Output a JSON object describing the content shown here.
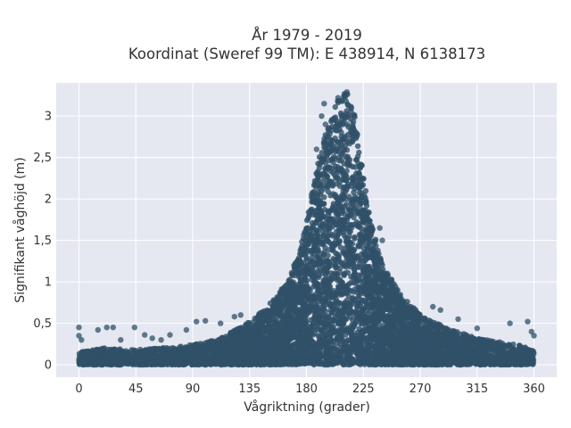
{
  "chart_data": {
    "type": "scatter",
    "title_line1": "År 1979 - 2019",
    "title_line2": "Koordinat (Sweref 99 TM): E 438914, N 6138173",
    "xlabel": "Vågriktning (grader)",
    "ylabel": "Signifikant våghöjd (m)",
    "xlim": [
      -18,
      378
    ],
    "ylim": [
      -0.15,
      3.4
    ],
    "x_ticks": [
      0,
      45,
      90,
      135,
      180,
      225,
      270,
      315,
      360
    ],
    "x_tick_labels": [
      "0",
      "45",
      "90",
      "135",
      "180",
      "225",
      "270",
      "315",
      "360"
    ],
    "y_ticks": [
      0,
      0.5,
      1,
      1.5,
      2,
      2.5,
      3
    ],
    "y_tick_labels": [
      "0",
      "0,5",
      "1",
      "1,5",
      "2",
      "2,5",
      "3"
    ],
    "grid": true,
    "colors": {
      "marker": "#2f5068",
      "plot_bg": "#e5e8f1",
      "grid": "#ffffff"
    },
    "envelope": [
      [
        0,
        0.15
      ],
      [
        20,
        0.2
      ],
      [
        45,
        0.18
      ],
      [
        80,
        0.22
      ],
      [
        110,
        0.3
      ],
      [
        135,
        0.52
      ],
      [
        150,
        0.72
      ],
      [
        165,
        1.0
      ],
      [
        175,
        1.4
      ],
      [
        182,
        1.9
      ],
      [
        190,
        2.5
      ],
      [
        198,
        2.95
      ],
      [
        205,
        3.2
      ],
      [
        212,
        3.3
      ],
      [
        218,
        3.05
      ],
      [
        225,
        2.3
      ],
      [
        230,
        1.8
      ],
      [
        240,
        1.2
      ],
      [
        255,
        0.85
      ],
      [
        270,
        0.6
      ],
      [
        290,
        0.45
      ],
      [
        315,
        0.32
      ],
      [
        345,
        0.25
      ],
      [
        360,
        0.18
      ]
    ],
    "outliers": [
      {
        "x": 0,
        "y": 0.45
      },
      {
        "x": 0,
        "y": 0.35
      },
      {
        "x": 2,
        "y": 0.3
      },
      {
        "x": 15,
        "y": 0.42
      },
      {
        "x": 22,
        "y": 0.45
      },
      {
        "x": 27,
        "y": 0.45
      },
      {
        "x": 33,
        "y": 0.3
      },
      {
        "x": 44,
        "y": 0.45
      },
      {
        "x": 52,
        "y": 0.36
      },
      {
        "x": 58,
        "y": 0.32
      },
      {
        "x": 65,
        "y": 0.3
      },
      {
        "x": 72,
        "y": 0.36
      },
      {
        "x": 85,
        "y": 0.42
      },
      {
        "x": 93,
        "y": 0.52
      },
      {
        "x": 100,
        "y": 0.53
      },
      {
        "x": 112,
        "y": 0.5
      },
      {
        "x": 123,
        "y": 0.58
      },
      {
        "x": 128,
        "y": 0.6
      },
      {
        "x": 205,
        "y": 3.22
      },
      {
        "x": 210,
        "y": 3.27
      },
      {
        "x": 212,
        "y": 3.29
      },
      {
        "x": 195,
        "y": 2.9
      },
      {
        "x": 194,
        "y": 3.15
      },
      {
        "x": 192,
        "y": 3.0
      },
      {
        "x": 188,
        "y": 2.6
      },
      {
        "x": 184,
        "y": 2.05
      },
      {
        "x": 240,
        "y": 1.5
      },
      {
        "x": 238,
        "y": 1.65
      },
      {
        "x": 280,
        "y": 0.7
      },
      {
        "x": 286,
        "y": 0.66
      },
      {
        "x": 300,
        "y": 0.55
      },
      {
        "x": 315,
        "y": 0.44
      },
      {
        "x": 341,
        "y": 0.5
      },
      {
        "x": 355,
        "y": 0.52
      },
      {
        "x": 358,
        "y": 0.4
      },
      {
        "x": 360,
        "y": 0.35
      }
    ]
  }
}
